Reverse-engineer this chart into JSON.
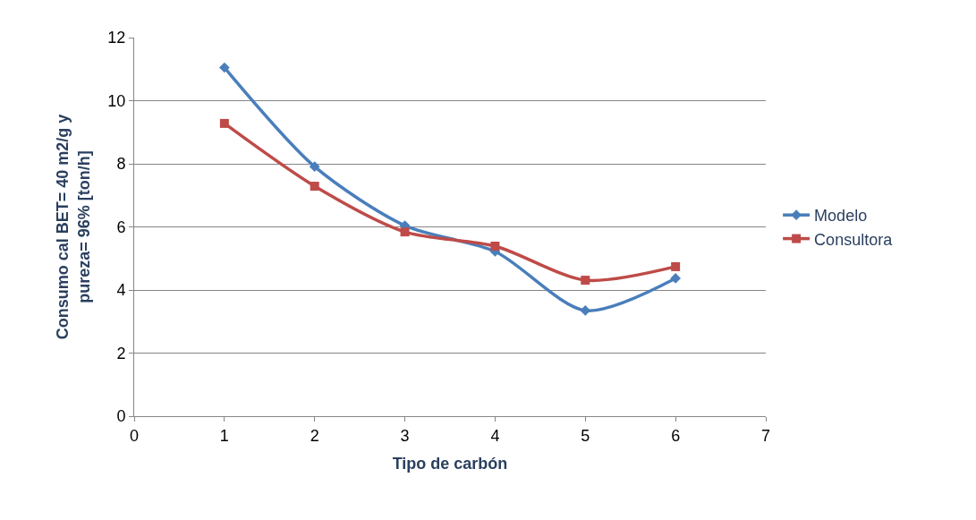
{
  "chart_data": {
    "type": "line",
    "xlabel": "Tipo de carbón",
    "ylabel": "Consumo cal BET= 40 m2/g y pureza= 96% [ton/h]",
    "x": [
      1,
      2,
      3,
      4,
      5,
      6
    ],
    "series": [
      {
        "name": "Modelo",
        "color": "#4a7ebb",
        "values": [
          11.05,
          7.91,
          6.04,
          5.22,
          3.35,
          4.37
        ],
        "marker": "diamond"
      },
      {
        "name": "Consultora",
        "color": "#be4b48",
        "values": [
          9.28,
          7.29,
          5.84,
          5.39,
          4.31,
          4.74
        ],
        "marker": "square"
      }
    ],
    "xlim": [
      0,
      7
    ],
    "xticks": [
      0,
      1,
      2,
      3,
      4,
      5,
      6,
      7
    ],
    "ylim": [
      0,
      12
    ],
    "yticks": [
      0,
      2,
      4,
      6,
      8,
      10,
      12
    ],
    "grid": "y",
    "legend": "right",
    "line_style": "solid"
  }
}
